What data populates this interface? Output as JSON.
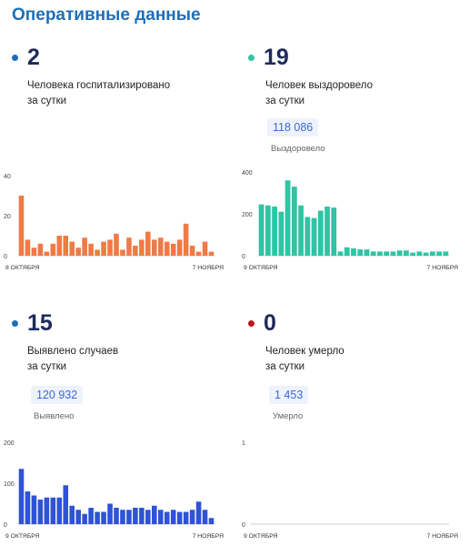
{
  "page": {
    "title": "Оперативные данные"
  },
  "cards": [
    {
      "id": "hospitalized",
      "dot_color": "#1d6fb8",
      "value": "2",
      "desc_line1": "Человека госпитализировано",
      "desc_line2": "за сутки",
      "badge": null,
      "sub": null
    },
    {
      "id": "recovered",
      "dot_color": "#2fc4a4",
      "value": "19",
      "desc_line1": "Человек выздоровело",
      "desc_line2": "за сутки",
      "badge": "118 086",
      "sub": "Выздоровело"
    },
    {
      "id": "cases",
      "dot_color": "#1d6fb8",
      "value": "15",
      "desc_line1": "Выявлено случаев",
      "desc_line2": "за сутки",
      "badge": "120 932",
      "sub": "Выявлено"
    },
    {
      "id": "deaths",
      "dot_color": "#c0141c",
      "value": "0",
      "desc_line1": "Человек умерло",
      "desc_line2": "за сутки",
      "badge": "1 453",
      "sub": "Умерло"
    }
  ],
  "chart_data": [
    {
      "type": "bar",
      "color": "#f07a45",
      "x_start_label": "8 ОКТЯБРЯ",
      "x_end_label": "7 НОЯБРЯ",
      "ylim": [
        0,
        40
      ],
      "yticks": [
        "40",
        "20",
        "0"
      ],
      "values": [
        30,
        8,
        4,
        6,
        2,
        6,
        10,
        10,
        7,
        4,
        9,
        6,
        3,
        7,
        8,
        11,
        3,
        9,
        5,
        8,
        12,
        8,
        9,
        7,
        6,
        8,
        16,
        5,
        2,
        7,
        2
      ]
    },
    {
      "type": "bar",
      "color": "#2fc4a4",
      "x_start_label": "9 ОКТЯБРЯ",
      "x_end_label": "7 НОЯБРЯ",
      "ylim": [
        0,
        400
      ],
      "yticks": [
        "400",
        "200",
        "0"
      ],
      "values": [
        245,
        240,
        235,
        210,
        360,
        330,
        240,
        185,
        180,
        215,
        235,
        230,
        20,
        40,
        35,
        30,
        30,
        20,
        20,
        20,
        20,
        25,
        25,
        15,
        20,
        15,
        20,
        20,
        20
      ]
    },
    {
      "type": "bar",
      "color": "#2f53d6",
      "x_start_label": "9 ОКТЯБРЯ",
      "x_end_label": "7 НОЯБРЯ",
      "ylim": [
        0,
        200
      ],
      "yticks": [
        "200",
        "100",
        "0"
      ],
      "values": [
        135,
        80,
        70,
        60,
        65,
        65,
        65,
        95,
        45,
        35,
        25,
        40,
        30,
        30,
        50,
        40,
        35,
        35,
        40,
        40,
        35,
        45,
        35,
        30,
        35,
        30,
        30,
        35,
        55,
        35,
        15
      ]
    },
    {
      "type": "bar",
      "color": "#c0141c",
      "x_start_label": "9 ОКТЯБРЯ",
      "x_end_label": "7 НОЯБРЯ",
      "ylim": [
        0,
        1
      ],
      "yticks": [
        "1",
        "0"
      ],
      "values": []
    }
  ]
}
